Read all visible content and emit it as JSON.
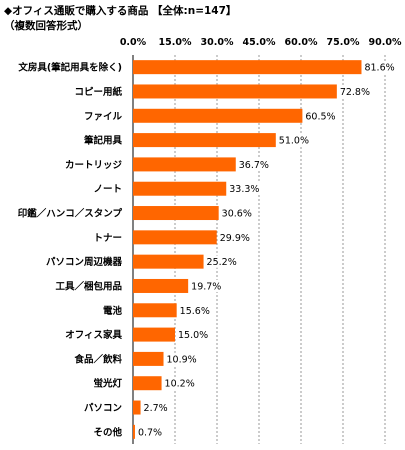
{
  "title": "◆オフィス通販で購入する商品 【全体:n=147】",
  "subtitle": "（複数回答形式）",
  "chart_data": {
    "type": "bar",
    "orientation": "horizontal",
    "categories": [
      "文房具(筆記用具を除く)",
      "コピー用紙",
      "ファイル",
      "筆記用具",
      "カートリッジ",
      "ノート",
      "印鑑／ハンコ／スタンプ",
      "トナー",
      "パソコン周辺機器",
      "工具／梱包用品",
      "電池",
      "オフィス家具",
      "食品／飲料",
      "蛍光灯",
      "パソコン",
      "その他"
    ],
    "values": [
      81.6,
      72.8,
      60.5,
      51.0,
      36.7,
      33.3,
      30.6,
      29.9,
      25.2,
      19.7,
      15.6,
      15.0,
      10.9,
      10.2,
      2.7,
      0.7
    ],
    "value_labels": [
      "81.6%",
      "72.8%",
      "60.5%",
      "51.0%",
      "36.7%",
      "33.3%",
      "30.6%",
      "29.9%",
      "25.2%",
      "19.7%",
      "15.6%",
      "15.0%",
      "10.9%",
      "10.2%",
      "2.7%",
      "0.7%"
    ],
    "xlim": [
      0,
      90
    ],
    "ticks": [
      0,
      15,
      30,
      45,
      60,
      75,
      90
    ],
    "tick_labels": [
      "0.0%",
      "15.0%",
      "30.0%",
      "45.0%",
      "60.0%",
      "75.0%",
      "90.0%"
    ],
    "tick_position": "top",
    "grid": true,
    "legend": "none",
    "bar_color": "#ff6600"
  }
}
